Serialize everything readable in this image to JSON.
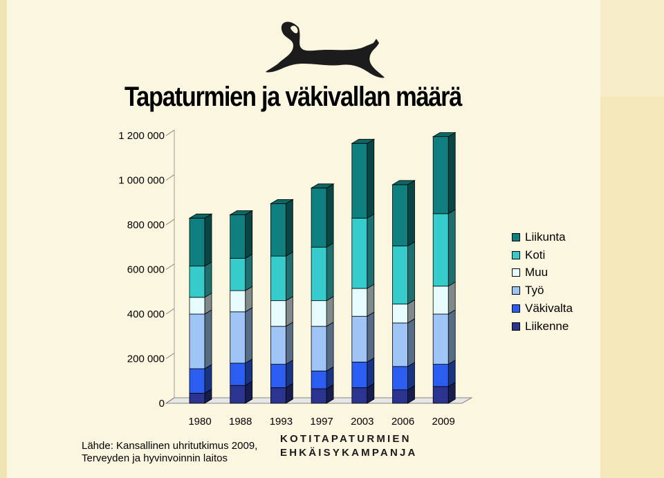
{
  "title": "Tapaturmien ja väkivallan määrä",
  "source_lines": [
    "Lähde: Kansallinen uhritutkimus 2009,",
    "Terveyden ja hyvinvoinnin laitos"
  ],
  "campaign_lines": [
    "KOTITAPATURMIEN",
    "EHKÄISYKAMPANJA"
  ],
  "logo_icon": "cat-silhouette-icon",
  "colors": {
    "Liikenne": "#2b3590",
    "Väkivalta": "#2b5ef0",
    "Työ": "#9ec5f5",
    "Muu": "#e6fbfd",
    "Koti": "#36cccc",
    "Liikunta": "#0f7f7f"
  },
  "chart_data": {
    "type": "bar",
    "stacked": true,
    "three_d": true,
    "title": "Tapaturmien ja väkivallan määrä",
    "categories": [
      "1980",
      "1988",
      "1993",
      "1997",
      "2003",
      "2006",
      "2009"
    ],
    "y_ticks": [
      "0",
      "200 000",
      "400 000",
      "600 000",
      "800 000",
      "1 000 000",
      "1 200 000"
    ],
    "ylim": [
      0,
      1200000
    ],
    "legend_position": "right",
    "series": [
      {
        "name": "Liikenne",
        "values": [
          45000,
          80000,
          70000,
          65000,
          70000,
          60000,
          75000
        ]
      },
      {
        "name": "Väkivalta",
        "values": [
          110000,
          100000,
          105000,
          80000,
          115000,
          105000,
          100000
        ]
      },
      {
        "name": "Työ",
        "values": [
          245000,
          230000,
          170000,
          200000,
          205000,
          195000,
          225000
        ]
      },
      {
        "name": "Muu",
        "values": [
          75000,
          95000,
          115000,
          115000,
          125000,
          85000,
          125000
        ]
      },
      {
        "name": "Koti",
        "values": [
          140000,
          145000,
          200000,
          240000,
          315000,
          260000,
          325000
        ]
      },
      {
        "name": "Liikunta",
        "values": [
          215000,
          195000,
          235000,
          265000,
          335000,
          275000,
          345000
        ]
      }
    ],
    "legend_order": [
      "Liikunta",
      "Koti",
      "Muu",
      "Työ",
      "Väkivalta",
      "Liikenne"
    ]
  }
}
